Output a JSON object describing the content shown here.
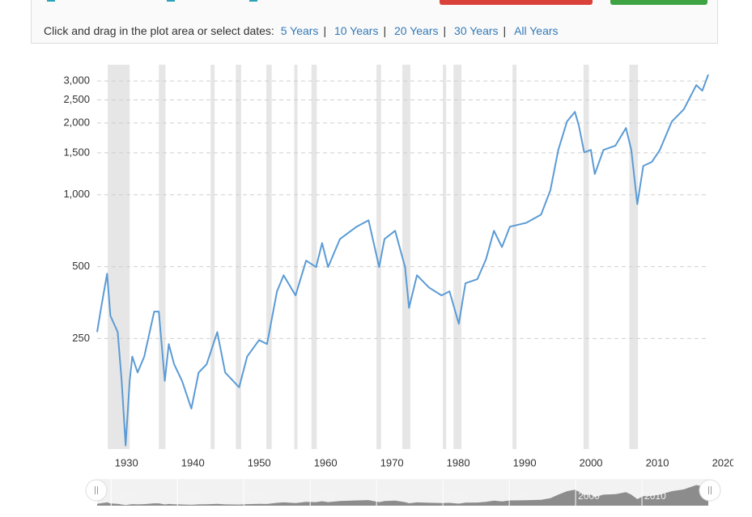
{
  "toolbar": {
    "prompt": "Click and drag in the plot area or select dates:",
    "links": [
      "5 Years",
      "10 Years",
      "20 Years",
      "30 Years",
      "All Years"
    ],
    "separator": "|"
  },
  "chart_data": {
    "type": "line",
    "log_scale": true,
    "grid": true,
    "series": [
      {
        "color": "#5b9bd5",
        "x": [
          1925.7,
          1926.3,
          1927.2,
          1927.7,
          1928.8,
          1929.4,
          1930.0,
          1930.6,
          1931.0,
          1931.8,
          1932.8,
          1934.3,
          1935.0,
          1935.9,
          1936.5,
          1937.3,
          1938.5,
          1939.9,
          1941.0,
          1942.2,
          1943.8,
          1945.0,
          1947.1,
          1948.3,
          1950.1,
          1951.3,
          1952.8,
          1953.8,
          1955.6,
          1957.2,
          1958.7,
          1959.6,
          1960.5,
          1962.3,
          1964.8,
          1966.6,
          1968.2,
          1969.0,
          1970.6,
          1972.1,
          1972.7,
          1973.9,
          1975.7,
          1977.6,
          1978.8,
          1980.2,
          1981.2,
          1983.0,
          1984.3,
          1985.5,
          1986.7,
          1987.9,
          1990.4,
          1992.6,
          1994.0,
          1995.2,
          1996.5,
          1997.7,
          1998.3,
          1999.1,
          2000.1,
          2000.7,
          2002.0,
          2003.8,
          2005.4,
          2006.2,
          2007.1,
          2008.0,
          2009.3,
          2010.5,
          2012.3,
          2014.1,
          2016.0,
          2016.9,
          2017.8
        ],
        "values": [
          266,
          336,
          467,
          311,
          266,
          166,
          89,
          166,
          210,
          180,
          210,
          324,
          324,
          166,
          237,
          195,
          166,
          127,
          180,
          195,
          266,
          180,
          156,
          210,
          246,
          237,
          394,
          460,
          379,
          530,
          498,
          628,
          498,
          653,
          735,
          782,
          498,
          653,
          707,
          498,
          336,
          460,
          409,
          379,
          394,
          288,
          426,
          443,
          537,
          707,
          604,
          735,
          764,
          826,
          1045,
          1542,
          2027,
          2228,
          1950,
          1507,
          1542,
          1222,
          1542,
          1606,
          1906,
          1542,
          914,
          1321,
          1374,
          1542,
          2027,
          2281,
          2884,
          2731,
          3192
        ]
      }
    ],
    "recession_bands": [
      [
        1927.3,
        1930.6
      ],
      [
        1935.0,
        1936.0
      ],
      [
        1942.8,
        1943.4
      ],
      [
        1946.6,
        1947.4
      ],
      [
        1951.2,
        1952.0
      ],
      [
        1955.4,
        1955.9
      ],
      [
        1958.0,
        1958.8
      ],
      [
        1967.8,
        1968.5
      ],
      [
        1971.7,
        1972.9
      ],
      [
        1977.8,
        1978.3
      ],
      [
        1979.4,
        1980.6
      ],
      [
        1988.3,
        1988.9
      ],
      [
        1999.0,
        1999.8
      ],
      [
        2005.9,
        2007.2
      ]
    ],
    "band_color": "#e6e6e6",
    "xlim": [
      1925.7,
      2017.8
    ],
    "xticks": [
      1930,
      1940,
      1950,
      1960,
      1970,
      1980,
      1990,
      2000,
      2010,
      2020
    ],
    "ylim": [
      86,
      3510
    ],
    "yticks": [
      250,
      500,
      {
        "value": 1000,
        "label": "1,000"
      },
      {
        "value": 1500,
        "label": "1,500"
      },
      {
        "value": 2000,
        "label": "2,000"
      },
      {
        "value": 2500,
        "label": "2,500"
      },
      {
        "value": 3000,
        "label": "3,000"
      }
    ]
  }
}
